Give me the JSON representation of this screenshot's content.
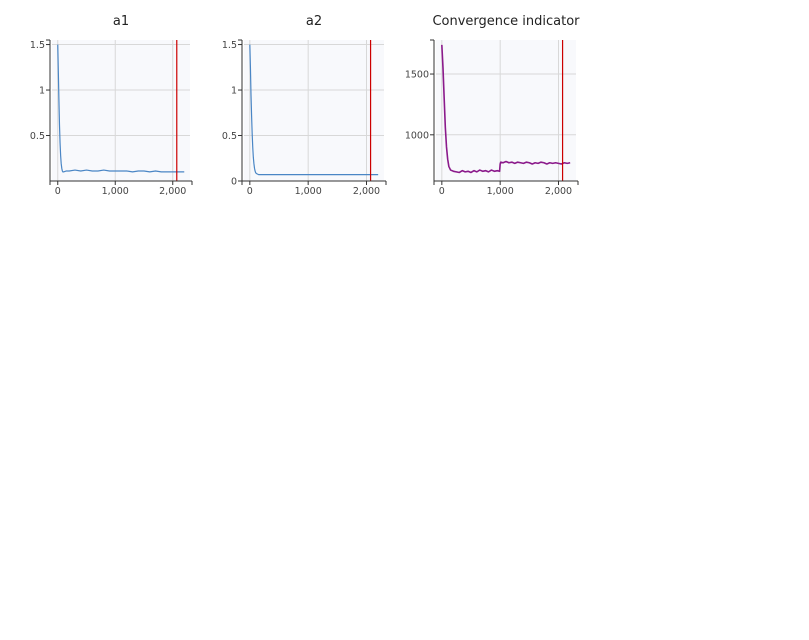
{
  "chart_data": [
    {
      "type": "line",
      "title": "a1",
      "xlabel": "",
      "ylabel": "",
      "xlim": [
        -100,
        2300
      ],
      "ylim": [
        0.0,
        1.55
      ],
      "xticks": [
        0,
        1000,
        2000
      ],
      "xtick_labels": [
        "0",
        "1,000",
        "2,000"
      ],
      "yticks": [
        0.5,
        1.0,
        1.5
      ],
      "ytick_labels": [
        "0.5",
        "1",
        "1.5"
      ],
      "grid": true,
      "colors": {
        "series": "#4a86c5",
        "marker": "#cc0000"
      },
      "series": [
        {
          "x": [
            0,
            10,
            20,
            30,
            40,
            50,
            60,
            70,
            80,
            90,
            100,
            150,
            200,
            300,
            400,
            500,
            600,
            700,
            800,
            900,
            1000,
            1100,
            1200,
            1300,
            1400,
            1500,
            1600,
            1700,
            1800,
            1900,
            2000,
            2100,
            2200
          ],
          "values": [
            1.5,
            1.2,
            0.9,
            0.62,
            0.42,
            0.28,
            0.19,
            0.14,
            0.11,
            0.1,
            0.1,
            0.11,
            0.11,
            0.12,
            0.11,
            0.12,
            0.11,
            0.11,
            0.12,
            0.11,
            0.11,
            0.11,
            0.11,
            0.1,
            0.11,
            0.11,
            0.1,
            0.11,
            0.1,
            0.1,
            0.1,
            0.1,
            0.1
          ]
        }
      ],
      "vline": 2070
    },
    {
      "type": "line",
      "title": "a2",
      "xlabel": "",
      "ylabel": "",
      "xlim": [
        -100,
        2300
      ],
      "ylim": [
        0.0,
        1.55
      ],
      "xticks": [
        0,
        1000,
        2000
      ],
      "xtick_labels": [
        "0",
        "1,000",
        "2,000"
      ],
      "yticks": [
        0,
        0.5,
        1.0,
        1.5
      ],
      "ytick_labels": [
        "0",
        "0.5",
        "1",
        "1.5"
      ],
      "grid": true,
      "colors": {
        "series": "#4a86c5",
        "marker": "#cc0000"
      },
      "series": [
        {
          "x": [
            0,
            10,
            20,
            30,
            40,
            50,
            60,
            70,
            80,
            90,
            100,
            120,
            150,
            200,
            300,
            400,
            500,
            600,
            700,
            800,
            900,
            1000,
            1100,
            1200,
            1300,
            1400,
            1500,
            1600,
            1700,
            1800,
            1900,
            2000,
            2100,
            2200
          ],
          "values": [
            1.5,
            1.25,
            0.95,
            0.72,
            0.52,
            0.37,
            0.26,
            0.19,
            0.14,
            0.11,
            0.09,
            0.08,
            0.07,
            0.07,
            0.07,
            0.07,
            0.07,
            0.07,
            0.07,
            0.07,
            0.07,
            0.07,
            0.07,
            0.07,
            0.07,
            0.07,
            0.07,
            0.07,
            0.07,
            0.07,
            0.07,
            0.07,
            0.07,
            0.07
          ]
        }
      ],
      "vline": 2070
    },
    {
      "type": "line",
      "title": "Convergence indicator",
      "xlabel": "",
      "ylabel": "",
      "xlim": [
        -100,
        2300
      ],
      "ylim": [
        620,
        1780
      ],
      "xticks": [
        0,
        1000,
        2000
      ],
      "xtick_labels": [
        "0",
        "1,000",
        "2,000"
      ],
      "yticks": [
        1000,
        1500
      ],
      "ytick_labels": [
        "1000",
        "1500"
      ],
      "grid": true,
      "colors": {
        "series": "#8b1a8b",
        "marker": "#cc0000"
      },
      "series": [
        {
          "x": [
            0,
            20,
            40,
            60,
            80,
            100,
            120,
            150,
            200,
            250,
            300,
            350,
            400,
            450,
            500,
            550,
            600,
            650,
            700,
            750,
            800,
            850,
            900,
            950,
            990,
            1000,
            1010,
            1050,
            1100,
            1150,
            1200,
            1250,
            1300,
            1350,
            1400,
            1450,
            1500,
            1550,
            1600,
            1650,
            1700,
            1750,
            1800,
            1850,
            1900,
            1950,
            2000,
            2050,
            2100,
            2150,
            2200
          ],
          "values": [
            1740,
            1550,
            1300,
            1060,
            900,
            800,
            740,
            710,
            700,
            695,
            690,
            705,
            695,
            700,
            690,
            705,
            695,
            710,
            700,
            705,
            695,
            710,
            700,
            705,
            700,
            760,
            775,
            770,
            780,
            770,
            775,
            765,
            775,
            770,
            765,
            775,
            770,
            760,
            770,
            765,
            775,
            770,
            760,
            770,
            765,
            770,
            765,
            760,
            770,
            765,
            770
          ]
        }
      ],
      "vline": 2070
    }
  ]
}
